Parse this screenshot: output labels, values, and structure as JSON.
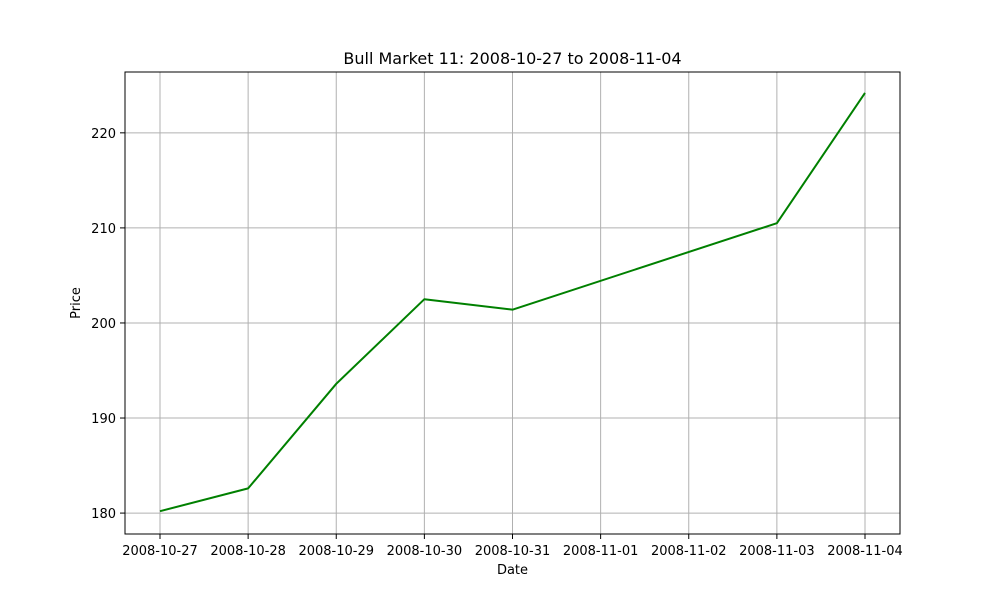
{
  "chart_data": {
    "type": "line",
    "title": "Bull Market 11: 2008-10-27 to 2008-11-04",
    "xlabel": "Date",
    "ylabel": "Price",
    "x": [
      "2008-10-27",
      "2008-10-28",
      "2008-10-29",
      "2008-10-30",
      "2008-10-31",
      "2008-11-01",
      "2008-11-02",
      "2008-11-03",
      "2008-11-04"
    ],
    "x_tick_labels": [
      "2008-10-27",
      "2008-10-28",
      "2008-10-29",
      "2008-10-30",
      "2008-10-31",
      "2008-11-01",
      "2008-11-02",
      "2008-11-03",
      "2008-11-04"
    ],
    "series": [
      {
        "points": [
          {
            "x": "2008-10-27",
            "y": 180.2
          },
          {
            "x": "2008-10-28",
            "y": 182.6
          },
          {
            "x": "2008-10-29",
            "y": 193.6
          },
          {
            "x": "2008-10-30",
            "y": 202.5
          },
          {
            "x": "2008-10-31",
            "y": 201.4
          },
          {
            "x": "2008-11-03",
            "y": 210.5
          },
          {
            "x": "2008-11-04",
            "y": 224.2
          }
        ],
        "color": "#008000"
      }
    ],
    "y_ticks": [
      180,
      190,
      200,
      210,
      220
    ],
    "ylim": [
      177.8,
      226.4
    ],
    "grid": true,
    "legend": false
  }
}
